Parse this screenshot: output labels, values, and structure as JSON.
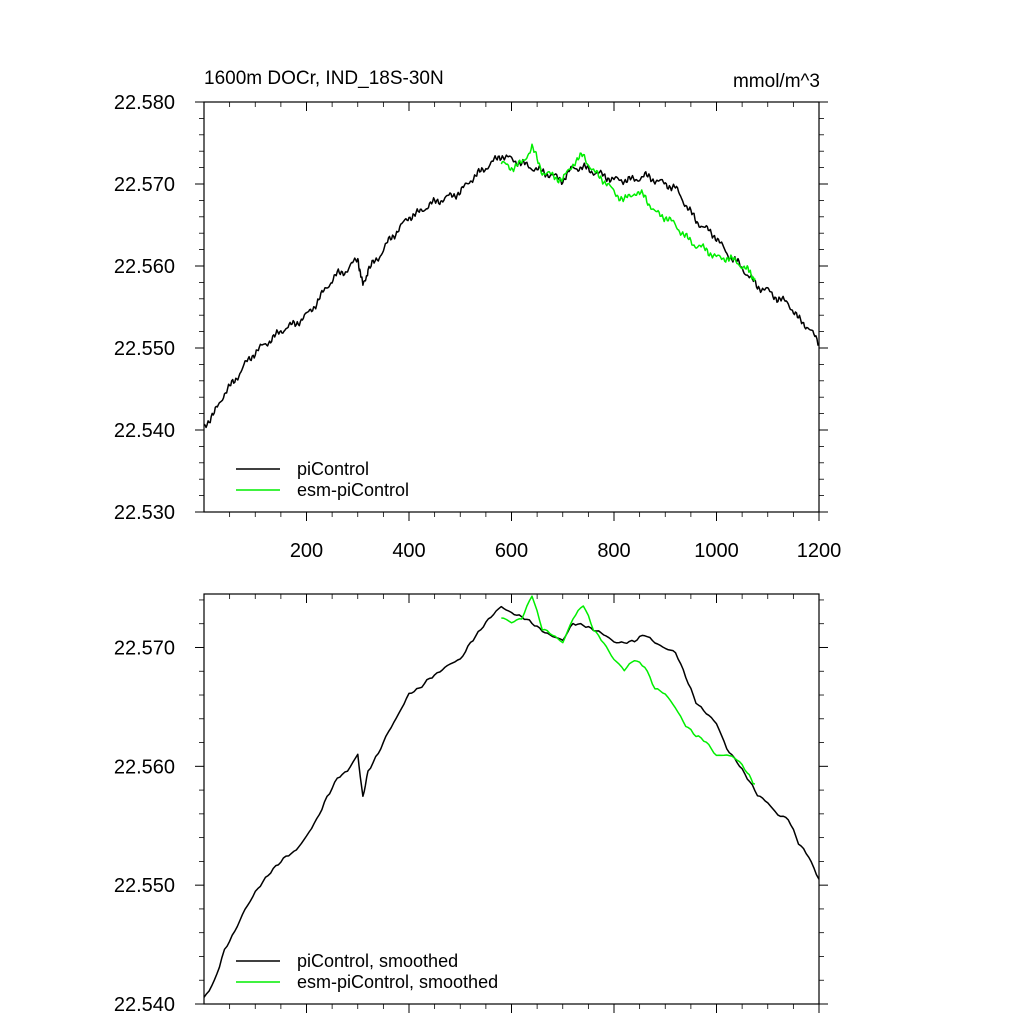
{
  "chart_data": [
    {
      "type": "line",
      "title": "1600m DOCr, IND_18S-30N",
      "units": "mmol/m^3",
      "xlim": [
        0,
        1200
      ],
      "ylim": [
        22.53,
        22.58
      ],
      "xticks": [
        200,
        400,
        600,
        800,
        1000,
        1200
      ],
      "xtick_labels": [
        "200",
        "400",
        "600",
        "800",
        "1000",
        "1200"
      ],
      "yticks": [
        22.53,
        22.54,
        22.55,
        22.56,
        22.57,
        22.58
      ],
      "ytick_labels": [
        "22.530",
        "22.540",
        "22.550",
        "22.560",
        "22.570",
        "22.580"
      ],
      "legend_position": "bottom-left",
      "series": [
        {
          "name": "piControl",
          "color": "#000000",
          "x": [
            0,
            20,
            40,
            60,
            80,
            100,
            120,
            140,
            160,
            180,
            200,
            220,
            240,
            260,
            280,
            300,
            310,
            320,
            340,
            360,
            380,
            400,
            420,
            440,
            460,
            480,
            500,
            520,
            540,
            560,
            580,
            600,
            620,
            640,
            660,
            680,
            700,
            720,
            740,
            760,
            780,
            800,
            820,
            840,
            860,
            880,
            900,
            920,
            940,
            960,
            980,
            1000,
            1020,
            1040,
            1060,
            1080,
            1100,
            1120,
            1140,
            1160,
            1180,
            1200
          ],
          "y": [
            22.5405,
            22.542,
            22.5445,
            22.546,
            22.548,
            22.5495,
            22.5505,
            22.5515,
            22.5525,
            22.553,
            22.554,
            22.5555,
            22.5575,
            22.559,
            22.5595,
            22.561,
            22.5575,
            22.5595,
            22.561,
            22.563,
            22.5645,
            22.566,
            22.5665,
            22.5675,
            22.568,
            22.5685,
            22.569,
            22.5705,
            22.5715,
            22.5725,
            22.5735,
            22.573,
            22.5725,
            22.572,
            22.5715,
            22.571,
            22.5705,
            22.572,
            22.572,
            22.5715,
            22.571,
            22.5705,
            22.5705,
            22.5705,
            22.571,
            22.5705,
            22.57,
            22.5695,
            22.5675,
            22.5655,
            22.5645,
            22.5635,
            22.5615,
            22.5605,
            22.559,
            22.5575,
            22.557,
            22.556,
            22.5555,
            22.5535,
            22.5525,
            22.5505
          ]
        },
        {
          "name": "esm-piControl",
          "color": "#00ee00",
          "x": [
            580,
            600,
            620,
            640,
            660,
            680,
            700,
            720,
            740,
            760,
            780,
            800,
            820,
            840,
            860,
            880,
            900,
            920,
            940,
            960,
            980,
            1000,
            1020,
            1040,
            1060,
            1075
          ],
          "y": [
            22.5725,
            22.572,
            22.5725,
            22.5745,
            22.5715,
            22.571,
            22.5705,
            22.5725,
            22.5735,
            22.5715,
            22.5705,
            22.569,
            22.568,
            22.569,
            22.5685,
            22.5665,
            22.566,
            22.565,
            22.5635,
            22.5625,
            22.562,
            22.561,
            22.561,
            22.5605,
            22.5595,
            22.5585
          ]
        }
      ]
    },
    {
      "type": "line",
      "xlim": [
        0,
        1200
      ],
      "ylim": [
        22.54,
        22.5745
      ],
      "xticks": [
        200,
        400,
        600,
        800,
        1000,
        1200
      ],
      "yticks": [
        22.54,
        22.55,
        22.56,
        22.57
      ],
      "ytick_labels": [
        "22.540",
        "22.550",
        "22.560",
        "22.570"
      ],
      "legend_position": "bottom-left",
      "series": [
        {
          "name": "piControl, smoothed",
          "color": "#000000",
          "x": [
            0,
            20,
            40,
            60,
            80,
            100,
            120,
            140,
            160,
            180,
            200,
            220,
            240,
            260,
            280,
            300,
            310,
            320,
            340,
            360,
            380,
            400,
            420,
            440,
            460,
            480,
            500,
            520,
            540,
            560,
            580,
            600,
            620,
            640,
            660,
            680,
            700,
            720,
            740,
            760,
            780,
            800,
            820,
            840,
            860,
            880,
            900,
            920,
            940,
            960,
            980,
            1000,
            1020,
            1040,
            1060,
            1080,
            1100,
            1120,
            1140,
            1160,
            1180,
            1200
          ],
          "y": [
            22.5405,
            22.542,
            22.5445,
            22.546,
            22.548,
            22.5495,
            22.5505,
            22.5515,
            22.5525,
            22.553,
            22.554,
            22.5555,
            22.5575,
            22.559,
            22.5595,
            22.561,
            22.5575,
            22.5595,
            22.561,
            22.563,
            22.5645,
            22.566,
            22.5665,
            22.5675,
            22.568,
            22.5685,
            22.569,
            22.5705,
            22.5715,
            22.5725,
            22.5735,
            22.573,
            22.5725,
            22.572,
            22.5715,
            22.571,
            22.5705,
            22.572,
            22.572,
            22.5715,
            22.571,
            22.5705,
            22.5705,
            22.5705,
            22.571,
            22.5705,
            22.57,
            22.5695,
            22.5675,
            22.5655,
            22.5645,
            22.5635,
            22.5615,
            22.5605,
            22.559,
            22.5575,
            22.557,
            22.556,
            22.5555,
            22.5535,
            22.5525,
            22.5505
          ]
        },
        {
          "name": "esm-piControl, smoothed",
          "color": "#00ee00",
          "x": [
            580,
            600,
            620,
            640,
            660,
            680,
            700,
            720,
            740,
            760,
            780,
            800,
            820,
            840,
            860,
            880,
            900,
            920,
            940,
            960,
            980,
            1000,
            1020,
            1040,
            1060,
            1075
          ],
          "y": [
            22.5725,
            22.572,
            22.5725,
            22.5745,
            22.5715,
            22.571,
            22.5705,
            22.5725,
            22.5735,
            22.5715,
            22.5705,
            22.569,
            22.568,
            22.569,
            22.5685,
            22.5665,
            22.566,
            22.565,
            22.5635,
            22.5625,
            22.562,
            22.561,
            22.561,
            22.5605,
            22.5595,
            22.5585
          ]
        }
      ]
    }
  ]
}
